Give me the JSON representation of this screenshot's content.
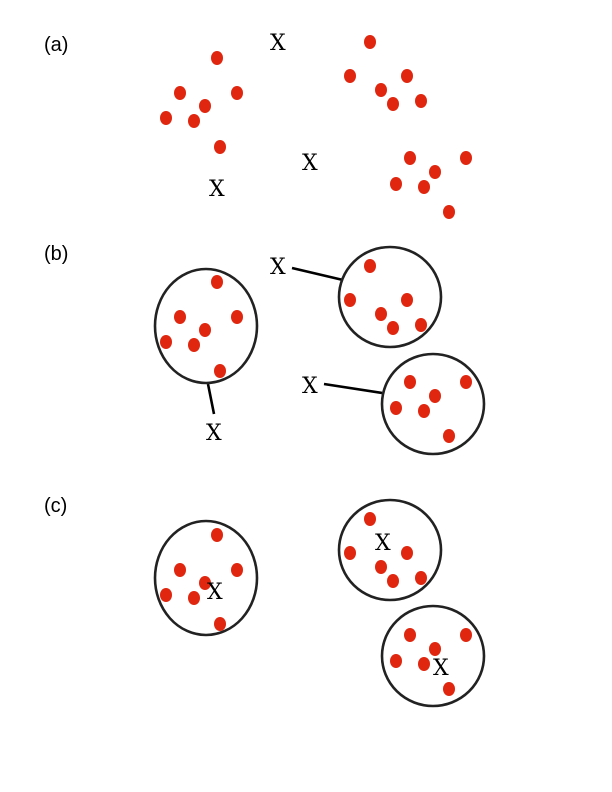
{
  "colors": {
    "dot": "#e0260f",
    "outline": "#222222",
    "text": "#000000"
  },
  "panels": [
    {
      "label": "(a)",
      "markers": [
        "X",
        "X",
        "X"
      ]
    },
    {
      "label": "(b)",
      "markers": [
        "X",
        "X",
        "X"
      ]
    },
    {
      "label": "(c)",
      "markers": [
        "X",
        "X",
        "X"
      ]
    }
  ]
}
